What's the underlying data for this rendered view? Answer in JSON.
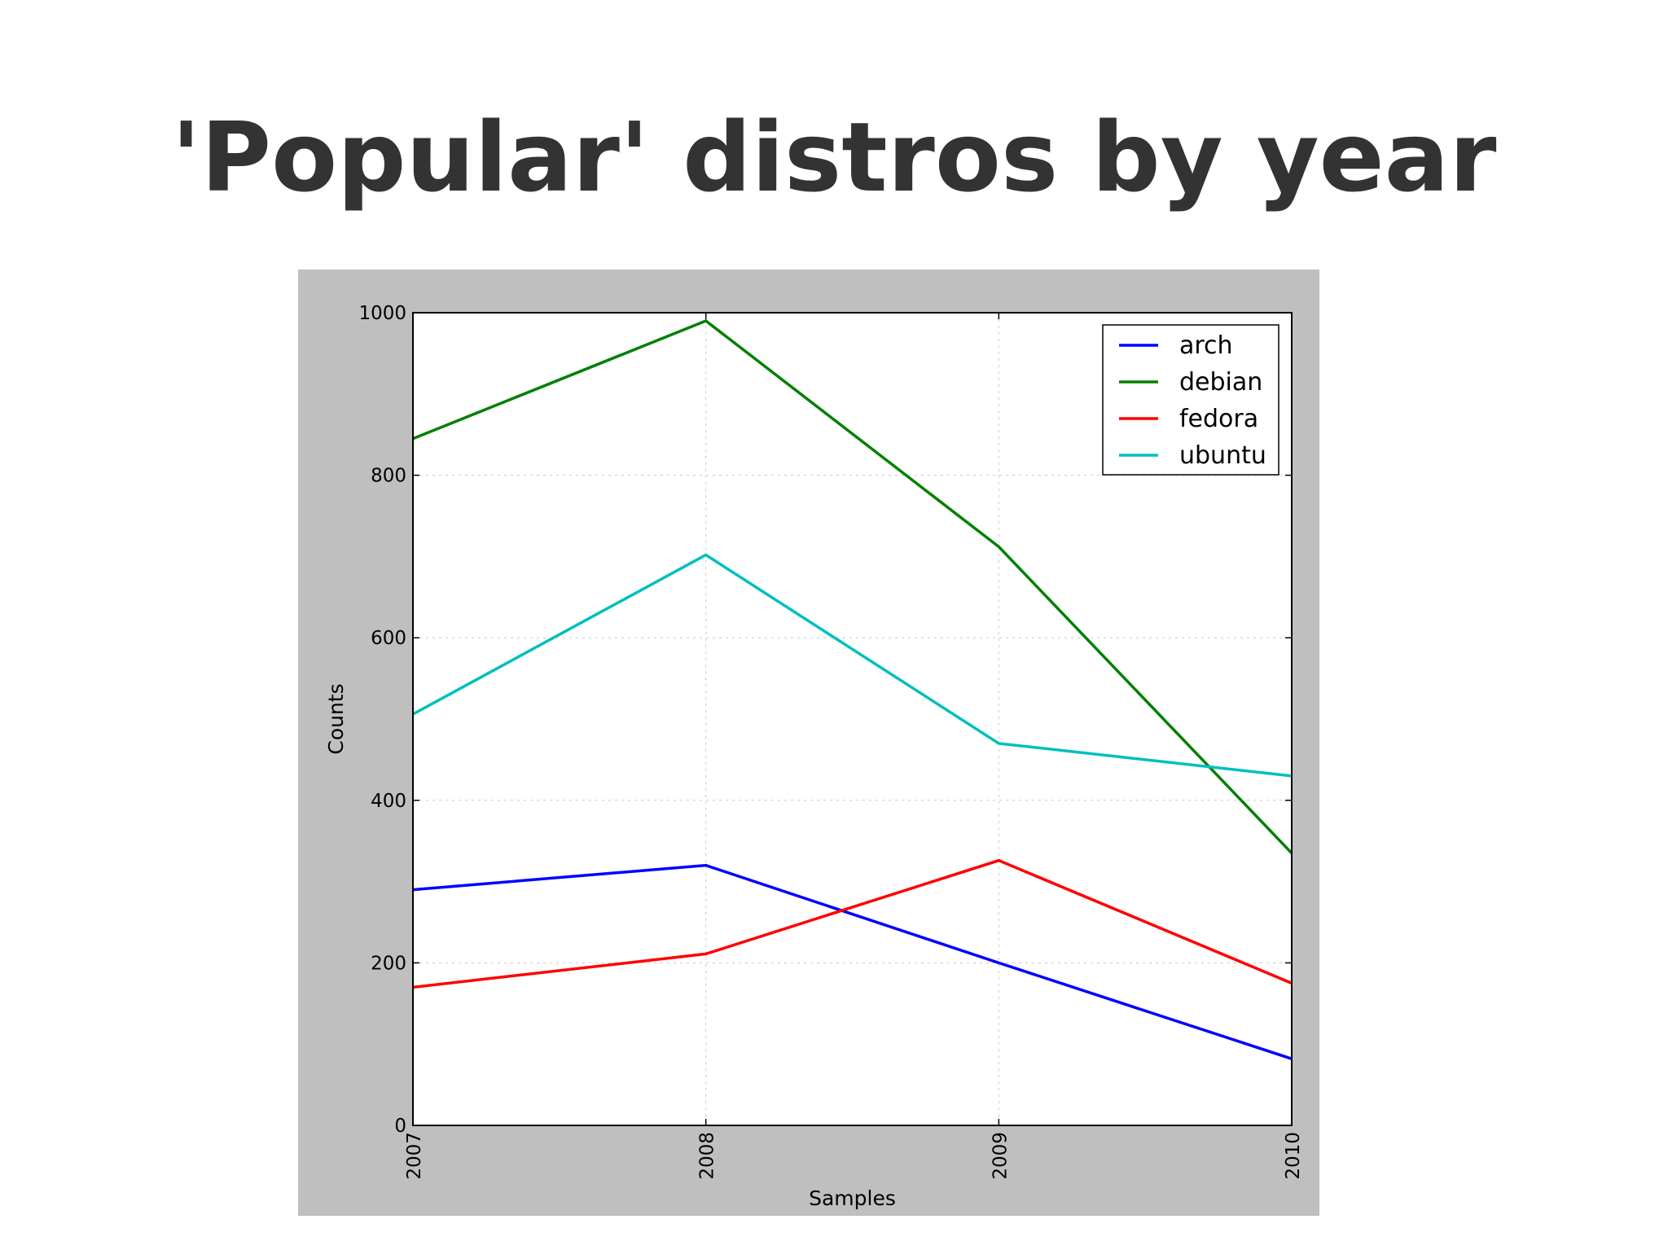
{
  "slide": {
    "title": "'Popular' distros by year"
  },
  "chart_data": {
    "type": "line",
    "x": [
      2007,
      2008,
      2009,
      2010
    ],
    "x_tick_labels": [
      "2007",
      "2008",
      "2009",
      "2010"
    ],
    "y_ticks": [
      0,
      200,
      400,
      600,
      800,
      1000
    ],
    "y_tick_labels": [
      "0",
      "200",
      "400",
      "600",
      "800",
      "1000"
    ],
    "xlabel": "Samples",
    "ylabel": "Counts",
    "xlim": [
      2007,
      2010
    ],
    "ylim": [
      0,
      1000
    ],
    "grid": true,
    "legend_position": "top-right",
    "series": [
      {
        "name": "arch",
        "color": "#0000ff",
        "values": [
          290,
          320,
          200,
          82
        ]
      },
      {
        "name": "debian",
        "color": "#008000",
        "values": [
          845,
          990,
          712,
          335
        ]
      },
      {
        "name": "fedora",
        "color": "#ff0000",
        "values": [
          170,
          211,
          326,
          175
        ]
      },
      {
        "name": "ubuntu",
        "color": "#00bfbf",
        "values": [
          506,
          702,
          470,
          430
        ]
      }
    ]
  }
}
